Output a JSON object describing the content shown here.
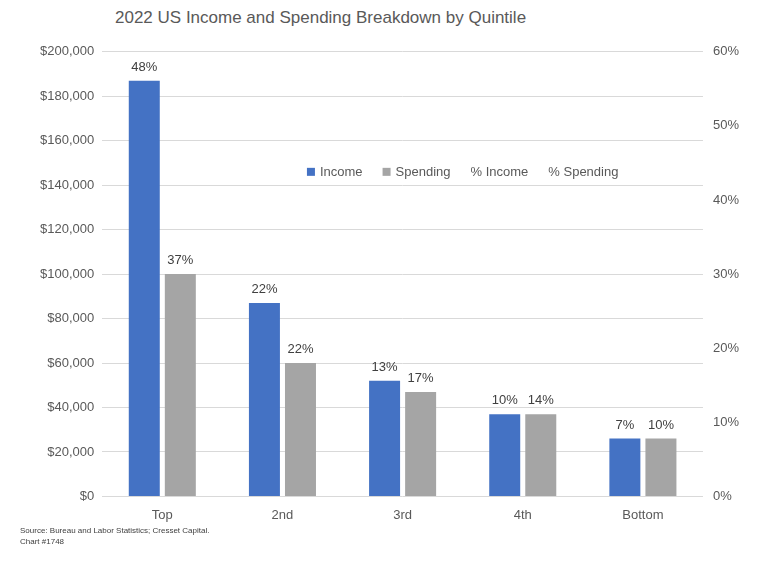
{
  "chart_data": {
    "type": "bar",
    "title": "2022 US Income and Spending Breakdown by Quintile",
    "annotations": [
      "Source: Bureau and Labor Statistics; Cresset Capital.",
      "Chart #1748"
    ],
    "categories": [
      "Top",
      "2nd",
      "3rd",
      "4th",
      "Bottom"
    ],
    "series": [
      {
        "name": "Income",
        "type": "bar",
        "color": "#4472c4",
        "values": [
          187000,
          87000,
          52000,
          37000,
          26000
        ]
      },
      {
        "name": "Spending",
        "type": "bar",
        "color": "#a5a5a5",
        "values": [
          100000,
          60000,
          47000,
          37000,
          26000
        ]
      },
      {
        "name": "% Income",
        "type": "line",
        "axis": "y2",
        "line_style": "none",
        "marker": "none",
        "data_labels": true,
        "values": [
          48,
          22,
          13,
          10,
          7
        ],
        "value_labels": [
          "48%",
          "22%",
          "13%",
          "10%",
          "7%"
        ]
      },
      {
        "name": "% Spending",
        "type": "line",
        "axis": "y2",
        "line_style": "none",
        "marker": "none",
        "data_labels": true,
        "values": [
          37,
          22,
          17,
          14,
          10
        ],
        "value_labels": [
          "37%",
          "22%",
          "17%",
          "14%",
          "10%"
        ]
      }
    ],
    "ylim": [
      0,
      200000
    ],
    "yticks": [
      {
        "value": 0,
        "label": "$0"
      },
      {
        "value": 20000,
        "label": "$20,000"
      },
      {
        "value": 40000,
        "label": "$40,000"
      },
      {
        "value": 60000,
        "label": "$60,000"
      },
      {
        "value": 80000,
        "label": "$80,000"
      },
      {
        "value": 100000,
        "label": "$100,000"
      },
      {
        "value": 120000,
        "label": "$120,000"
      },
      {
        "value": 140000,
        "label": "$140,000"
      },
      {
        "value": 160000,
        "label": "$160,000"
      },
      {
        "value": 180000,
        "label": "$180,000"
      },
      {
        "value": 200000,
        "label": "$200,000"
      }
    ],
    "y2lim": [
      0,
      60
    ],
    "y2ticks": [
      {
        "value": 0,
        "label": "0%"
      },
      {
        "value": 10,
        "label": "10%"
      },
      {
        "value": 20,
        "label": "20%"
      },
      {
        "value": 30,
        "label": "30%"
      },
      {
        "value": 40,
        "label": "40%"
      },
      {
        "value": 50,
        "label": "50%"
      },
      {
        "value": 60,
        "label": "60%"
      }
    ],
    "grid": true,
    "legend": "top"
  }
}
